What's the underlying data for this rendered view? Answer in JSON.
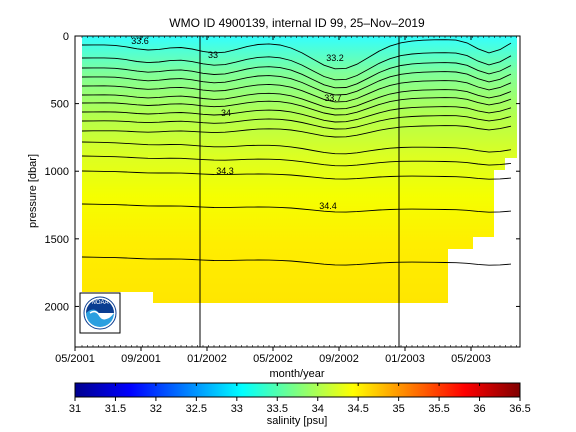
{
  "chart_data": {
    "type": "heatmap",
    "title": "WMO ID 4900139, internal ID 99, 25–Nov–2019",
    "xlabel": "month/year",
    "ylabel": "pressure [dbar]",
    "x_ticks": [
      "05/2001",
      "09/2001",
      "01/2002",
      "05/2002",
      "09/2002",
      "01/2003",
      "05/2003"
    ],
    "y_ticks": [
      "0",
      "500",
      "1000",
      "1500",
      "2000"
    ],
    "ylim": [
      2300,
      0
    ],
    "y_reversed": true,
    "colorbar": {
      "label": "salinity [psu]",
      "ticks": [
        "31",
        "31.5",
        "32",
        "32.5",
        "33",
        "33.5",
        "34",
        "34.5",
        "35",
        "35.5",
        "36",
        "36.5"
      ],
      "range": [
        31,
        36.5
      ],
      "colormap": "jet"
    },
    "contour_labels": [
      "33.6",
      "33",
      "33.2",
      "33.7",
      "34",
      "34.3",
      "34.4"
    ],
    "vertical_markers": [
      "01/2002",
      "01/2003"
    ],
    "salinity_levels": [
      {
        "level": 33.0,
        "band": "0-100 dbar"
      },
      {
        "level": 33.7,
        "band": "~400-700 dbar"
      },
      {
        "level": 34.0,
        "band": "~550-900 dbar"
      },
      {
        "level": 34.3,
        "band": "~1000 dbar"
      },
      {
        "level": 34.4,
        "band": "~1250 dbar"
      },
      {
        "level": 34.5,
        "band": ">1500 dbar"
      }
    ]
  }
}
